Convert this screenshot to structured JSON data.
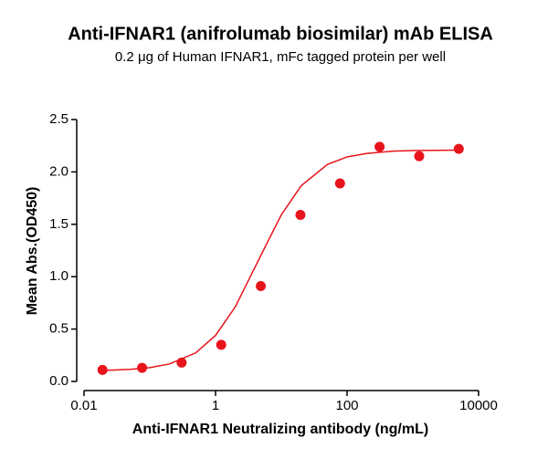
{
  "chart_data": {
    "type": "scatter",
    "title": "Anti-IFNAR1 (anifrolumab biosimilar) mAb ELISA",
    "subtitle": "0.2 μg of Human IFNAR1, mFc tagged protein per well",
    "x_label": "Anti-IFNAR1 Neutralizing antibody (ng/mL)",
    "y_label": "Mean Abs.(OD450)",
    "x_scale": "log",
    "xlim": [
      0.01,
      10000
    ],
    "xticks": [
      0.01,
      1,
      100,
      10000
    ],
    "ylim": [
      0,
      2.5
    ],
    "yticks": [
      {
        "value": 0,
        "label": "0.0"
      },
      {
        "value": 0.5,
        "label": "0.5"
      },
      {
        "value": 1,
        "label": "1.0"
      },
      {
        "value": 1.5,
        "label": "1.5"
      },
      {
        "value": 2,
        "label": "2.0"
      },
      {
        "value": 2.5,
        "label": "2.5"
      }
    ],
    "points": {
      "color": "#e8141b",
      "x": [
        0.0191,
        0.0763,
        0.305,
        1.22,
        4.88,
        19.53,
        78.125,
        312.5,
        1250,
        5000
      ],
      "values": [
        0.11,
        0.13,
        0.18,
        0.35,
        0.91,
        1.59,
        1.89,
        2.24,
        2.15,
        2.22
      ]
    },
    "curve": {
      "color": "#e8141b",
      "x": [
        0.0191,
        0.05,
        0.1,
        0.2,
        0.5,
        1,
        2,
        5,
        10,
        20,
        50,
        100,
        200,
        500,
        1000,
        5000
      ],
      "values": [
        0.105,
        0.115,
        0.132,
        0.167,
        0.273,
        0.439,
        0.713,
        1.216,
        1.59,
        1.867,
        2.071,
        2.143,
        2.177,
        2.198,
        2.204,
        2.208
      ]
    }
  }
}
